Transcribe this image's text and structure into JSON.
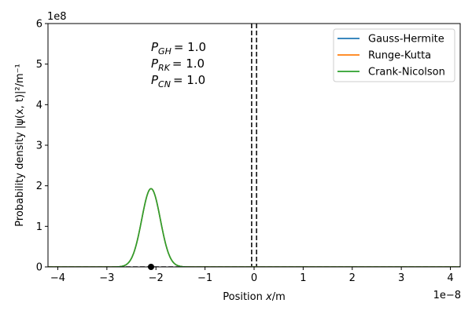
{
  "chart_data": {
    "type": "line",
    "xlabel": "Position x/m",
    "ylabel": "Probability density |ψ(x, t)|²/m⁻¹",
    "x_scale_label": "1e−8",
    "y_scale_label": "1e8",
    "xlim": [
      -4.2,
      4.2
    ],
    "ylim": [
      0,
      6
    ],
    "xticks": [
      -4,
      -3,
      -2,
      -1,
      0,
      1,
      2,
      3,
      4
    ],
    "xtick_labels": [
      "−4",
      "−3",
      "−2",
      "−1",
      "0",
      "1",
      "2",
      "3",
      "4"
    ],
    "yticks": [
      0,
      1,
      2,
      3,
      4,
      5,
      6
    ],
    "ytick_labels": [
      "0",
      "1",
      "2",
      "3",
      "4",
      "5",
      "6"
    ],
    "wavepacket": {
      "center": -2.1,
      "peak": 1.93,
      "sigma": 0.19
    },
    "series": [
      {
        "name": "Gauss-Hermite",
        "color": "#1f77b4"
      },
      {
        "name": "Runge-Kutta",
        "color": "#ff7f0e"
      },
      {
        "name": "Crank-Nicolson",
        "color": "#2ca02c"
      }
    ],
    "barrier_lines": [
      -0.05,
      0.05
    ],
    "marker": {
      "x": -2.1,
      "y": 0.0
    },
    "legend_position": "top-right",
    "annotations": [
      {
        "sym": "P",
        "sub": "GH",
        "val": "= 1.0"
      },
      {
        "sym": "P",
        "sub": "RK",
        "val": "= 1.0"
      },
      {
        "sym": "P",
        "sub": "CN",
        "val": "= 1.0"
      }
    ]
  }
}
